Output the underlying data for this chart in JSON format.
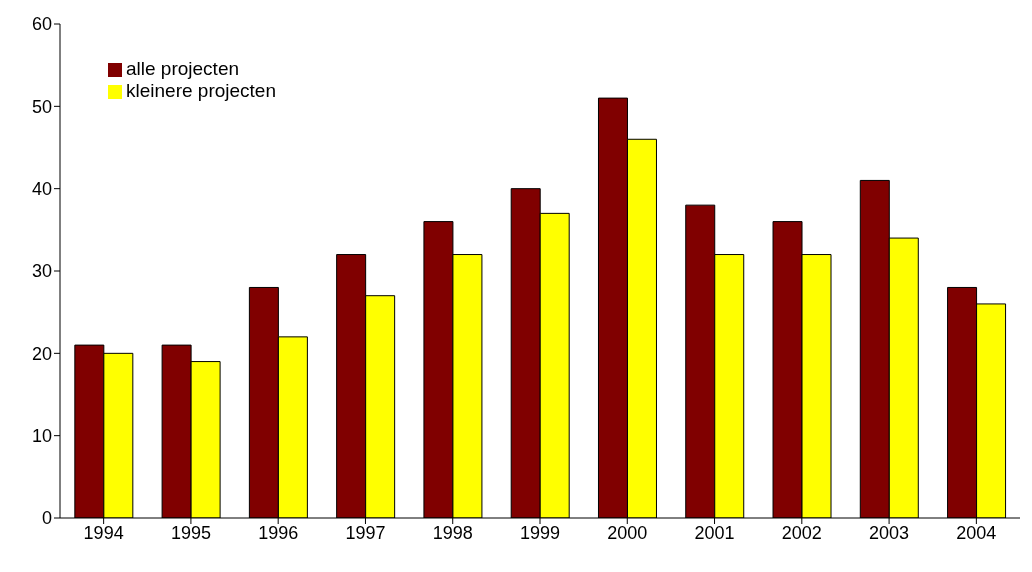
{
  "chart_data": {
    "type": "bar",
    "categories": [
      "1994",
      "1995",
      "1996",
      "1997",
      "1998",
      "1999",
      "2000",
      "2001",
      "2002",
      "2003",
      "2004"
    ],
    "series": [
      {
        "name": "alle projecten",
        "color": "#800000",
        "values": [
          21,
          21,
          28,
          32,
          36,
          40,
          51,
          38,
          36,
          41,
          28
        ]
      },
      {
        "name": "kleinere projecten",
        "color": "#ffff00",
        "values": [
          20,
          19,
          22,
          27,
          32,
          37,
          46,
          32,
          32,
          34,
          26
        ]
      }
    ],
    "ylim": [
      0,
      60
    ],
    "yticks": [
      0,
      10,
      20,
      30,
      40,
      50,
      60
    ],
    "grid": false,
    "legend": "top left"
  }
}
